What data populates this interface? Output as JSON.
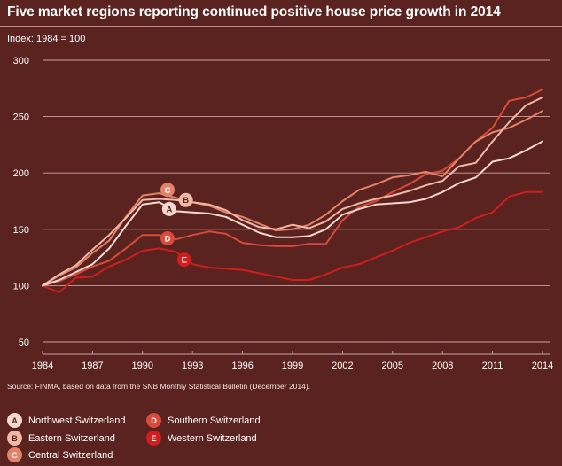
{
  "title": "Five market regions reporting continued positive house price growth in 2014",
  "index_label": "Index: 1984 = 100",
  "source": "Source: FINMA, based on data from the SNB Monthly Statistical Bulletin (December 2014).",
  "legend": [
    {
      "letter": "A",
      "name": "Northwest Switzerland",
      "color": "#f5d8d0",
      "text_color": "#5a2320"
    },
    {
      "letter": "B",
      "name": "Eastern Switzerland",
      "color": "#f2b8a6",
      "text_color": "#5a2320"
    },
    {
      "letter": "C",
      "name": "Central Switzerland",
      "color": "#e5826a",
      "text_color": "#ffffff"
    },
    {
      "letter": "D",
      "name": "Southern Switzerland",
      "color": "#d84a3a",
      "text_color": "#ffffff"
    },
    {
      "letter": "E",
      "name": "Western Switzerland",
      "color": "#d11d1d",
      "text_color": "#ffffff"
    }
  ],
  "chart_data": {
    "type": "line",
    "title": "Five market regions reporting continued positive house price growth in 2014",
    "ylabel": "Index: 1984 = 100",
    "xlim": [
      1984,
      2014
    ],
    "ylim": [
      50,
      300
    ],
    "y_ticks": [
      50,
      100,
      150,
      200,
      250,
      300
    ],
    "x_ticks": [
      1984,
      1987,
      1990,
      1993,
      1996,
      1999,
      2002,
      2005,
      2008,
      2011,
      2014
    ],
    "grid": "horizontal",
    "series": [
      {
        "name": "Western Switzerland",
        "letter": "E",
        "color": "#d11d1d",
        "label_at": [
          1992.5,
          123
        ],
        "x": [
          1984,
          1985,
          1986,
          1987,
          1988,
          1989,
          1990,
          1991,
          1992,
          1993,
          1994,
          1995,
          1996,
          1997,
          1998,
          1999,
          2000,
          2001,
          2002,
          2003,
          2004,
          2005,
          2006,
          2007,
          2008,
          2009,
          2010,
          2011,
          2012,
          2013,
          2014
        ],
        "y": [
          100,
          94,
          107,
          108,
          117,
          123,
          131,
          133,
          130,
          119,
          116,
          115,
          114,
          111,
          108,
          105,
          105,
          110,
          116,
          119,
          125,
          131,
          138,
          143,
          148,
          152,
          160,
          165,
          179,
          183,
          183
        ]
      },
      {
        "name": "Southern Switzerland",
        "letter": "D",
        "color": "#d84a3a",
        "label_at": [
          1991.5,
          142
        ],
        "x": [
          1984,
          1985,
          1986,
          1987,
          1988,
          1989,
          1990,
          1991,
          1992,
          1993,
          1994,
          1995,
          1996,
          1997,
          1998,
          1999,
          2000,
          2001,
          2002,
          2003,
          2004,
          2005,
          2006,
          2007,
          2008,
          2009,
          2010,
          2011,
          2012,
          2013,
          2014
        ],
        "y": [
          100,
          104,
          110,
          117,
          122,
          133,
          145,
          145,
          141,
          145,
          148,
          146,
          138,
          136,
          135,
          135,
          137,
          137,
          158,
          170,
          175,
          183,
          190,
          199,
          202,
          213,
          228,
          240,
          264,
          267,
          274
        ]
      },
      {
        "name": "Central Switzerland",
        "letter": "C",
        "color": "#e5826a",
        "label_at": [
          1991.5,
          185
        ],
        "x": [
          1984,
          1985,
          1986,
          1987,
          1988,
          1989,
          1990,
          1991,
          1992,
          1993,
          1994,
          1995,
          1996,
          1997,
          1998,
          1999,
          2000,
          2001,
          2002,
          2003,
          2004,
          2005,
          2006,
          2007,
          2008,
          2009,
          2010,
          2011,
          2012,
          2013,
          2014
        ],
        "y": [
          100,
          109,
          116,
          129,
          140,
          161,
          180,
          182,
          178,
          174,
          171,
          165,
          161,
          155,
          149,
          150,
          154,
          163,
          175,
          185,
          190,
          196,
          198,
          201,
          197,
          213,
          228,
          236,
          240,
          247,
          255
        ]
      },
      {
        "name": "Eastern Switzerland",
        "letter": "B",
        "color": "#f2b8a6",
        "label_at": [
          1992.6,
          176
        ],
        "x": [
          1984,
          1985,
          1986,
          1987,
          1988,
          1989,
          1990,
          1991,
          1992,
          1993,
          1994,
          1995,
          1996,
          1997,
          1998,
          1999,
          2000,
          2001,
          2002,
          2003,
          2004,
          2005,
          2006,
          2007,
          2008,
          2009,
          2010,
          2011,
          2012,
          2013,
          2014
        ],
        "y": [
          100,
          110,
          118,
          132,
          145,
          160,
          176,
          177,
          176,
          174,
          172,
          167,
          158,
          152,
          150,
          154,
          151,
          157,
          168,
          173,
          177,
          180,
          184,
          189,
          193,
          206,
          209,
          228,
          245,
          260,
          267
        ]
      },
      {
        "name": "Northwest Switzerland",
        "letter": "A",
        "color": "#f5d8d0",
        "label_at": [
          1991.6,
          168
        ],
        "x": [
          1984,
          1985,
          1986,
          1987,
          1988,
          1989,
          1990,
          1991,
          1992,
          1993,
          1994,
          1995,
          1996,
          1997,
          1998,
          1999,
          2000,
          2001,
          2002,
          2003,
          2004,
          2005,
          2006,
          2007,
          2008,
          2009,
          2010,
          2011,
          2012,
          2013,
          2014
        ],
        "y": [
          100,
          105,
          112,
          119,
          133,
          153,
          172,
          174,
          166,
          165,
          164,
          161,
          154,
          147,
          143,
          143,
          144,
          150,
          163,
          168,
          172,
          173,
          174,
          177,
          183,
          191,
          196,
          210,
          213,
          220,
          228
        ]
      }
    ]
  }
}
